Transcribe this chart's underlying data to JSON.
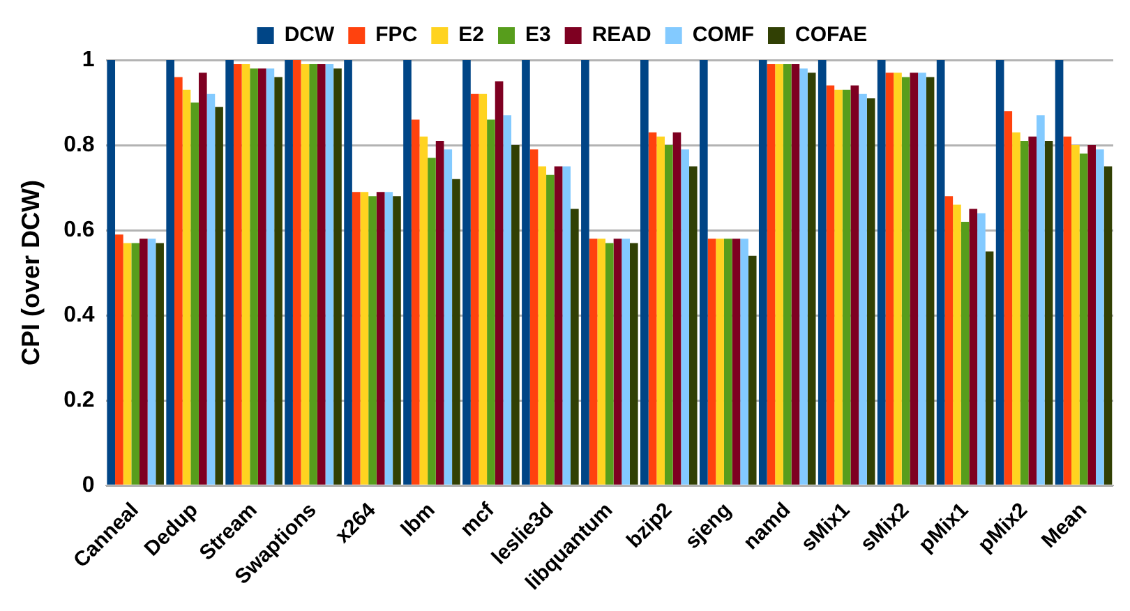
{
  "chart_data": {
    "type": "bar",
    "ylabel": "CPI (over DCW)",
    "categories": [
      "Canneal",
      "Dedup",
      "Stream",
      "Swaptions",
      "x264",
      "lbm",
      "mcf",
      "leslie3d",
      "libquantum",
      "bzip2",
      "sjeng",
      "namd",
      "sMix1",
      "sMix2",
      "pMix1",
      "pMix2",
      "Mean"
    ],
    "series": [
      {
        "name": "DCW",
        "color": "#004586",
        "values": [
          1,
          1,
          1,
          1,
          1,
          1,
          1,
          1,
          1,
          1,
          1,
          1,
          1,
          1,
          1,
          1,
          1
        ]
      },
      {
        "name": "FPC",
        "color": "#ff420e",
        "values": [
          0.59,
          0.96,
          0.99,
          1.0,
          0.69,
          0.86,
          0.92,
          0.79,
          0.58,
          0.83,
          0.58,
          0.99,
          0.94,
          0.97,
          0.68,
          0.88,
          0.82
        ]
      },
      {
        "name": "E2",
        "color": "#ffd320",
        "values": [
          0.57,
          0.93,
          0.99,
          0.99,
          0.69,
          0.82,
          0.92,
          0.75,
          0.58,
          0.82,
          0.58,
          0.99,
          0.93,
          0.97,
          0.66,
          0.83,
          0.8
        ]
      },
      {
        "name": "E3",
        "color": "#579d1c",
        "values": [
          0.57,
          0.9,
          0.98,
          0.99,
          0.68,
          0.77,
          0.86,
          0.73,
          0.57,
          0.8,
          0.58,
          0.99,
          0.93,
          0.96,
          0.62,
          0.81,
          0.78
        ]
      },
      {
        "name": "READ",
        "color": "#7e0021",
        "values": [
          0.58,
          0.97,
          0.98,
          0.99,
          0.69,
          0.81,
          0.95,
          0.75,
          0.58,
          0.83,
          0.58,
          0.99,
          0.94,
          0.97,
          0.65,
          0.82,
          0.8
        ]
      },
      {
        "name": "COMF",
        "color": "#83caff",
        "values": [
          0.58,
          0.92,
          0.98,
          0.99,
          0.69,
          0.79,
          0.87,
          0.75,
          0.58,
          0.79,
          0.58,
          0.98,
          0.92,
          0.97,
          0.64,
          0.87,
          0.79
        ]
      },
      {
        "name": "COFAE",
        "color": "#314004",
        "values": [
          0.57,
          0.89,
          0.96,
          0.98,
          0.68,
          0.72,
          0.8,
          0.65,
          0.57,
          0.75,
          0.54,
          0.97,
          0.91,
          0.96,
          0.55,
          0.81,
          0.75
        ]
      }
    ],
    "ylim": [
      0,
      1
    ],
    "yticks": [
      0,
      0.2,
      0.4,
      0.6,
      0.8,
      1
    ],
    "grid": "y",
    "legend": "top"
  }
}
